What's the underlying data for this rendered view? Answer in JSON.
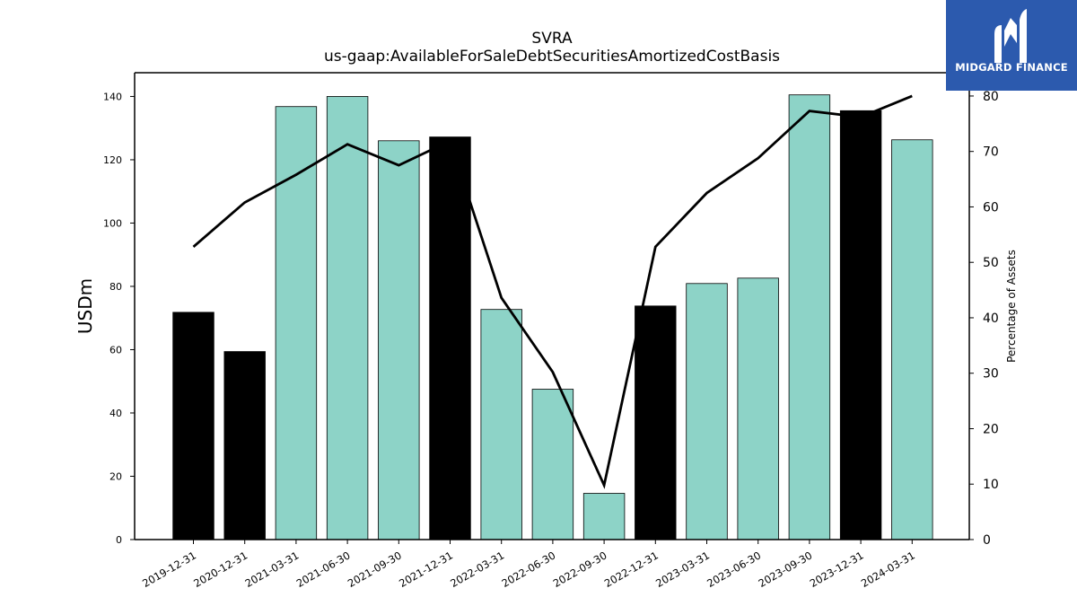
{
  "chart_data": {
    "type": "bar",
    "title": "SVRA",
    "subtitle": "us-gaap:AvailableForSaleDebtSecuritiesAmortizedCostBasis",
    "ylabel": "USDm",
    "y2label": "Percentage of Assets",
    "ylim": [
      0,
      147.5
    ],
    "y2lim": [
      0,
      84.2
    ],
    "yticks": [
      0,
      20,
      40,
      60,
      80,
      100,
      120,
      140
    ],
    "y2ticks": [
      0,
      10,
      20,
      30,
      40,
      50,
      60,
      70,
      80
    ],
    "categories": [
      "2019-12-31",
      "2020-12-31",
      "2021-03-31",
      "2021-06-30",
      "2021-09-30",
      "2021-12-31",
      "2022-03-31",
      "2022-06-30",
      "2022-09-30",
      "2022-12-31",
      "2023-03-31",
      "2023-06-30",
      "2023-09-30",
      "2023-12-31",
      "2024-03-31"
    ],
    "values": [
      71.8,
      59.4,
      136.8,
      140.0,
      126.0,
      127.2,
      72.7,
      47.5,
      14.6,
      73.8,
      80.9,
      82.6,
      140.5,
      135.5,
      126.3
    ],
    "bar_colors": [
      "#000000",
      "#000000",
      "#8dd3c7",
      "#8dd3c7",
      "#8dd3c7",
      "#000000",
      "#8dd3c7",
      "#8dd3c7",
      "#8dd3c7",
      "#000000",
      "#8dd3c7",
      "#8dd3c7",
      "#8dd3c7",
      "#000000",
      "#8dd3c7"
    ],
    "line": {
      "axis": "right",
      "color": "#000000",
      "values": [
        52.8,
        60.8,
        65.8,
        71.3,
        67.5,
        71.9,
        43.6,
        30.2,
        9.8,
        52.8,
        62.5,
        68.8,
        77.3,
        76.2,
        80.0
      ]
    },
    "grid": false,
    "legend": "none"
  },
  "logo": {
    "text": "MIDGARD FINANCE",
    "background": "#2c5aae",
    "foreground": "#ffffff"
  }
}
